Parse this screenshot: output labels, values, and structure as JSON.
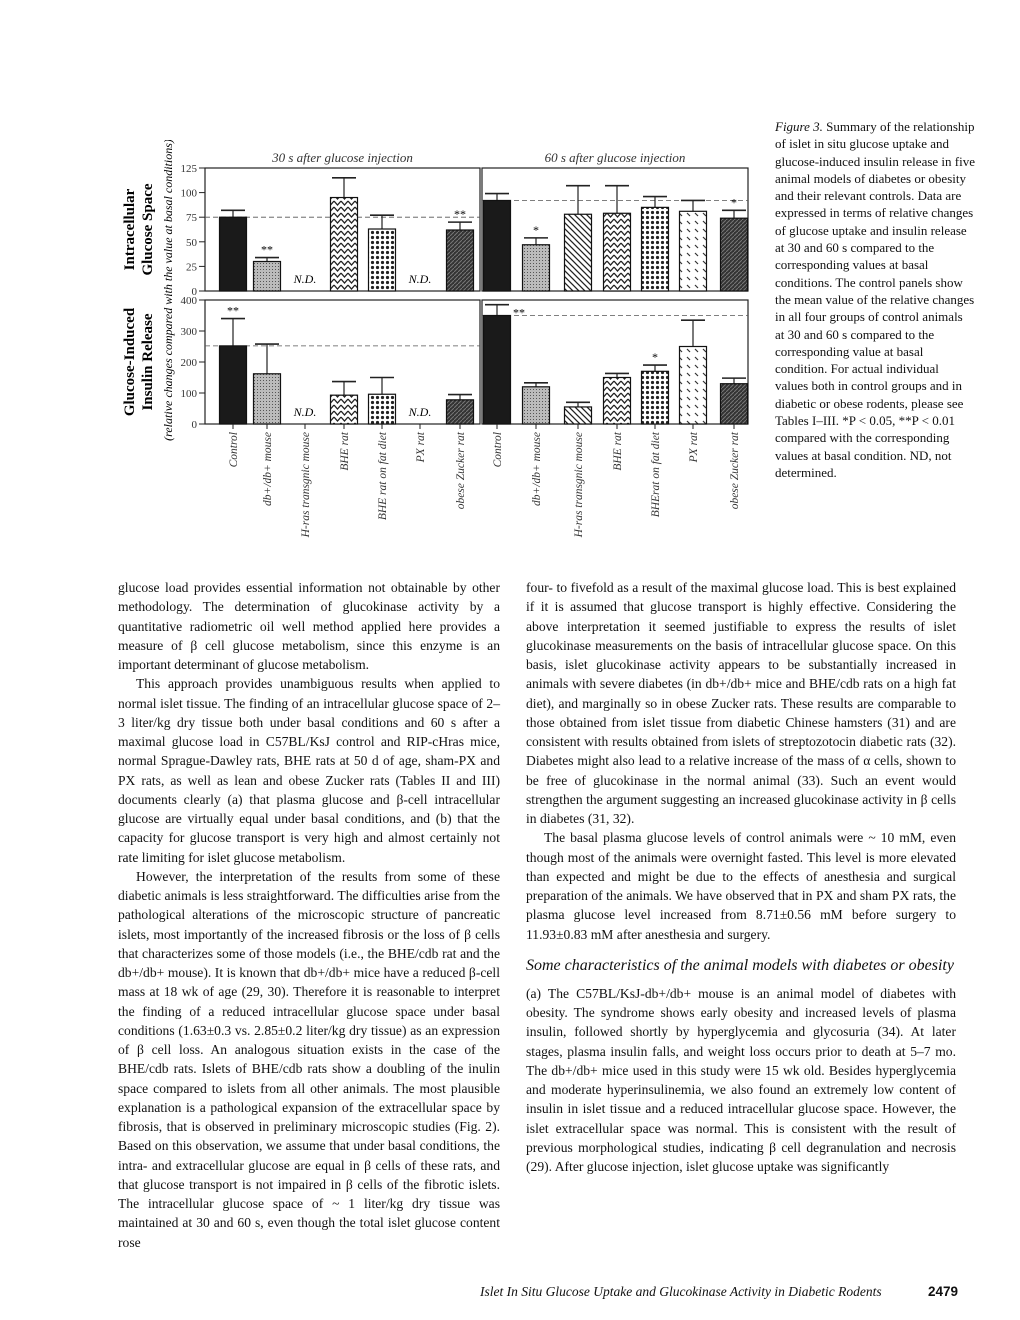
{
  "figure": {
    "caption_label": "Figure 3.",
    "caption_text": " Summary of the relationship of islet in situ glucose uptake and glucose-induced insulin release in five animal models of diabetes or obesity and their relevant controls. Data are expressed in terms of relative changes of glucose uptake and insulin release at 30 and 60 s compared to the corresponding values at basal conditions. The control panels show the mean value of the relative changes in all four groups of control animals at 30 and 60 s compared to the corresponding value at basal condition. For actual individual values both in control groups and in diabetic or obese rodents, please see Tables I–III. *P < 0.05, **P < 0.01 compared with the corresponding values at basal condition. ND, not determined."
  },
  "chart_data": {
    "type": "bar",
    "ylabel_common": "(relative changes compared with the value at basal conditions)",
    "panel_titles": [
      "30 s after glucose injection",
      "60 s  after glucose injection"
    ],
    "rows": [
      {
        "ylabel": [
          "Intracellular",
          "Glucose Space"
        ],
        "ylim": [
          0,
          125
        ],
        "ticks": [
          0,
          25,
          50,
          75,
          100,
          125
        ]
      },
      {
        "ylabel": [
          "Glucose-Induced",
          "Insulin Release"
        ],
        "ylim": [
          0,
          400
        ],
        "ticks": [
          0,
          100,
          200,
          300,
          400
        ]
      }
    ],
    "categories_30s": [
      "Control",
      "db+/db+ mouse",
      "H-ras transgnic mouse",
      "BHE rat",
      "BHE rat on fat diet",
      "PX rat",
      "obese Zucker rat"
    ],
    "categories_60s": [
      "Control",
      "db+/db+ mouse",
      "H-ras transgnic mouse",
      "BHE rat",
      "BHErat on fat diet",
      "PX rat",
      "obese Zucker rat"
    ],
    "nd_label": "N.D.",
    "series": {
      "glucose_space_30s": {
        "values": [
          75,
          30,
          null,
          95,
          63,
          null,
          62
        ],
        "error_top": [
          82,
          34,
          null,
          115,
          77,
          null,
          70
        ],
        "sig": [
          "",
          "**",
          "",
          "",
          "",
          "",
          "**"
        ],
        "reference": 75
      },
      "glucose_space_60s": {
        "values": [
          92,
          47,
          78,
          79,
          85,
          81,
          74
        ],
        "error_top": [
          99,
          54,
          107,
          107,
          96,
          92,
          82
        ],
        "sig": [
          "",
          "*",
          "",
          "",
          "",
          "",
          "*"
        ],
        "reference": 92
      },
      "insulin_30s": {
        "values": [
          252,
          162,
          null,
          93,
          96,
          null,
          78
        ],
        "error_top": [
          340,
          258,
          null,
          137,
          150,
          null,
          95
        ],
        "sig": [
          "**",
          "",
          "",
          "",
          "",
          "",
          ""
        ],
        "reference": 252
      },
      "insulin_60s": {
        "values": [
          350,
          120,
          55,
          150,
          170,
          250,
          130
        ],
        "error_top": [
          385,
          133,
          70,
          163,
          190,
          335,
          148
        ],
        "sig": [
          "**",
          "",
          "",
          "",
          "*",
          "",
          ""
        ],
        "reference": 350
      }
    },
    "patterns": [
      "solid-black",
      "fine-gray",
      "diagonal-dash",
      "zigzag",
      "dots",
      "sparse-dash",
      "dark-hatch"
    ]
  },
  "body": {
    "left": [
      {
        "indent": false,
        "text": "glucose load provides essential information not obtainable by other methodology. The determination of glucokinase activity by a quantitative radiometric oil well method applied here provides a measure of β cell glucose metabolism, since this enzyme is an important determinant of glucose metabolism."
      },
      {
        "indent": true,
        "text": "This approach provides unambiguous results when applied to normal islet tissue. The finding of an intracellular glucose space of 2–3 liter/kg dry tissue both under basal conditions and 60 s after a maximal glucose load in C57BL/KsJ control and RIP-cHras mice, normal Sprague-Dawley rats, BHE rats at 50 d of age, sham-PX and PX rats, as well as lean and obese Zucker rats (Tables II and III) documents clearly (a) that plasma glucose and β-cell intracellular glucose are virtually equal under basal conditions, and (b) that the capacity for glucose transport is very high and almost certainly not rate limiting for islet glucose metabolism."
      },
      {
        "indent": true,
        "text": "However, the interpretation of the results from some of these diabetic animals is less straightforward. The difficulties arise from the pathological alterations of the microscopic structure of pancreatic islets, most importantly of the increased fibrosis or the loss of β cells that characterizes some of those models (i.e., the BHE/cdb rat and the db+/db+ mouse). It is known that db+/db+ mice have a reduced β-cell mass at 18 wk of age (29, 30). Therefore it is reasonable to interpret the finding of a reduced intracellular glucose space under basal conditions (1.63±0.3 vs. 2.85±0.2 liter/kg dry tissue) as an expression of β cell loss. An analogous situation exists in the case of the BHE/cdb rats. Islets of BHE/cdb rats show a doubling of the inulin space compared to islets from all other animals. The most plausible explanation is a pathological expansion of the extracellular space by fibrosis, that is observed in preliminary microscopic studies (Fig. 2). Based on this observation, we assume that under basal conditions, the intra- and extracellular glucose are equal in β cells of these rats, and that glucose transport is not impaired in β cells of the fibrotic islets. The intracellular glucose space of ~ 1 liter/kg dry tissue was maintained at 30 and 60 s, even though the total islet glucose content rose"
      }
    ],
    "right": [
      {
        "indent": false,
        "text": "four- to fivefold as a result of the maximal glucose load. This is best explained if it is assumed that glucose transport is highly effective. Considering the above interpretation it seemed justifiable to express the results of islet glucokinase measurements on the basis of intracellular glucose space. On this basis, islet glucokinase activity appears to be substantially increased in animals with severe diabetes (in db+/db+ mice and BHE/cdb rats on a high fat diet), and marginally so in obese Zucker rats. These results are comparable to those obtained from islet tissue from diabetic Chinese hamsters (31) and are consistent with results obtained from islets of streptozotocin diabetic rats (32). Diabetes might also lead to a relative increase of the mass of α cells, shown to be free of glucokinase in the normal animal (33). Such an event would strengthen the argument suggesting an increased glucokinase activity in β cells in diabetes (31, 32)."
      },
      {
        "indent": true,
        "text": "The basal plasma glucose levels of control animals were ~ 10 mM, even though most of the animals were overnight fasted. This level is more elevated than expected and might be due to the effects of anesthesia and surgical preparation of the animals. We have observed that in PX and sham PX rats, the plasma glucose level increased from 8.71±0.56 mM before surgery to 11.93±0.83 mM after anesthesia and surgery."
      }
    ],
    "heading": "Some characteristics of the animal models with diabetes or obesity",
    "right_after": [
      {
        "indent": false,
        "text": "(a) The C57BL/KsJ-db+/db+ mouse is an animal model of diabetes with obesity. The syndrome shows early obesity and increased levels of plasma insulin, followed shortly by hyperglycemia and glycosuria (34). At later stages, plasma insulin falls, and weight loss occurs prior to death at 5–7 mo. The db+/db+ mice used in this study were 15 wk old. Besides hyperglycemia and moderate hyperinsulinemia, we also found an extremely low content of insulin in islet tissue and a reduced intracellular glucose space. However, the islet extracellular space was normal. This is consistent with the result of previous morphological studies, indicating β cell degranulation and necrosis (29). After glucose injection, islet glucose uptake was significantly"
      }
    ]
  },
  "footer": {
    "running_title": "Islet In Situ Glucose Uptake and Glucokinase Activity in Diabetic Rodents",
    "page_number": "2479"
  }
}
